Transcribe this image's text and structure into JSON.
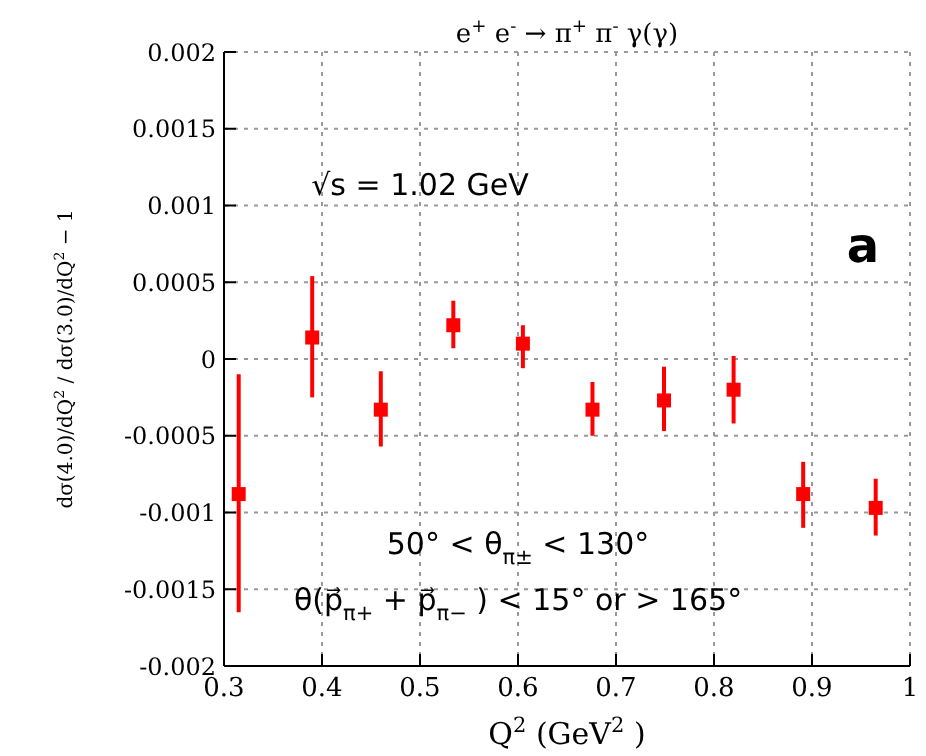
{
  "chart_data": {
    "type": "scatter",
    "title": "e$^{+}$e$^{-}$ → π$^{+}$π$^{-}$γ(γ)",
    "xlabel": "Q$^{2}$(GeV$^{2}$)",
    "ylabel": "dσ(4.0)/dQ$^{2}$ / dσ(3.0)/dQ$^{2}$ − 1",
    "annotations": [
      "√s = 1.02 GeV",
      "a",
      "50° < θ$_{π±}$ < 130°",
      "θ(p⃗$_{π+}$ + p⃗$_{π−}$) < 15° or > 165°"
    ],
    "x": [
      0.315,
      0.39,
      0.46,
      0.534,
      0.605,
      0.676,
      0.749,
      0.82,
      0.891,
      0.965
    ],
    "series": [
      {
        "color": "#ff0000",
        "values": [
          -0.00088,
          0.00014,
          -0.00033,
          0.00022,
          0.0001,
          -0.00033,
          -0.00027,
          -0.0002,
          -0.00088,
          -0.00097
        ],
        "errors": [
          [
            -0.00165,
            -0.0001
          ],
          [
            -0.00025,
            0.00054
          ],
          [
            -0.00057,
            -8e-05
          ],
          [
            7e-05,
            0.00038
          ],
          [
            -6e-05,
            0.00022
          ],
          [
            -0.0005,
            -0.00015
          ],
          [
            -0.00047,
            -5e-05
          ],
          [
            -0.00042,
            2e-05
          ],
          [
            -0.0011,
            -0.00067
          ],
          [
            -0.00115,
            -0.00078
          ]
        ]
      }
    ],
    "xlim": [
      0.3,
      1
    ],
    "xticks": [
      0.3,
      0.4,
      0.5,
      0.6,
      0.7,
      0.8,
      0.9,
      1
    ],
    "ylim": [
      -0.002,
      0.002
    ],
    "yticks": [
      -0.002,
      -0.0015,
      -0.001,
      -0.0005,
      0,
      0.0005,
      0.001,
      0.0015,
      0.002
    ],
    "grid": true,
    "marker": "square",
    "legend": false
  }
}
